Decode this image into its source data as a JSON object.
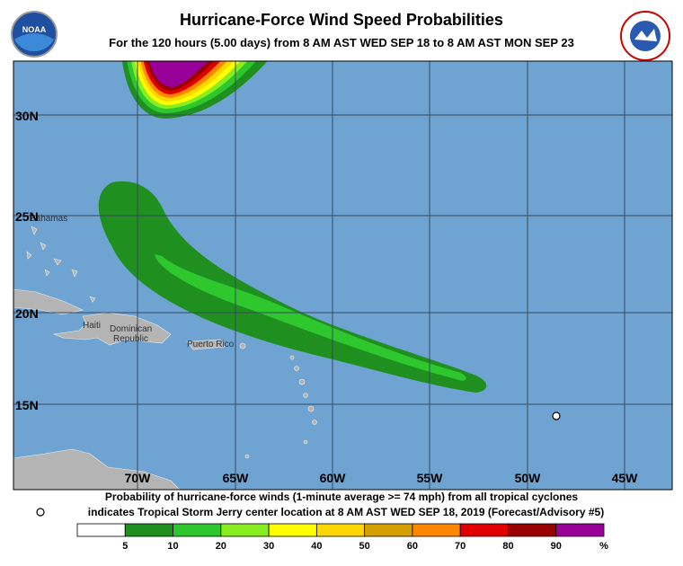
{
  "header": {
    "title": "Hurricane-Force Wind Speed Probabilities",
    "subtitle": "For the 120 hours (5.00 days) from 8 AM AST WED SEP 18 to 8 AM AST MON SEP 23"
  },
  "map": {
    "lat_labels": [
      "30N",
      "25N",
      "20N",
      "15N"
    ],
    "lon_labels": [
      "70W",
      "65W",
      "60W",
      "55W",
      "50W",
      "45W"
    ],
    "places": [
      "Bahamas",
      "Haiti",
      "Dominican",
      "Republic",
      "Puerto Rico"
    ]
  },
  "footer": {
    "line1": "Probability of hurricane-force winds (1-minute average >= 74 mph) from all tropical cyclones",
    "line2": "indicates Tropical Storm Jerry center location at 8 AM AST WED SEP 18, 2019 (Forecast/Advisory #5)"
  },
  "legend": {
    "thresholds": [
      5,
      10,
      20,
      30,
      40,
      50,
      60,
      70,
      80,
      90
    ],
    "unit": "%",
    "colors": [
      "#ffffff",
      "#1f8f1f",
      "#2ec82e",
      "#88ee22",
      "#ffff00",
      "#ffd700",
      "#d4a000",
      "#ff8800",
      "#e00000",
      "#990000",
      "#990099"
    ]
  }
}
